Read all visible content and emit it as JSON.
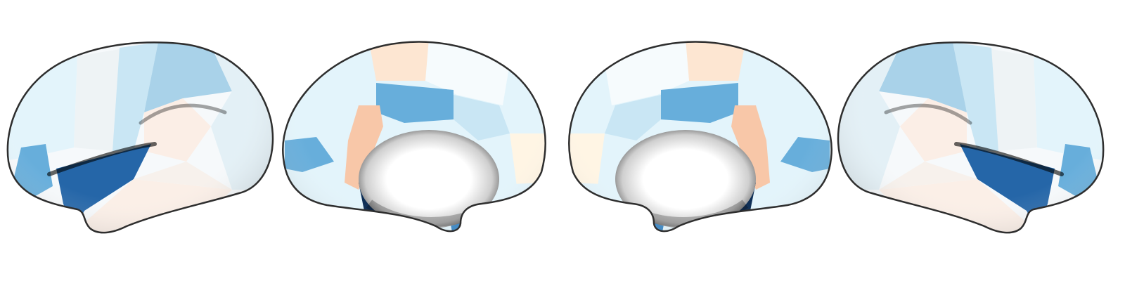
{
  "figure": {
    "views": [
      {
        "id": "left-lateral",
        "hemisphere": "left",
        "view": "lateral"
      },
      {
        "id": "left-medial",
        "hemisphere": "left",
        "view": "medial"
      },
      {
        "id": "right-medial",
        "hemisphere": "right",
        "view": "medial"
      },
      {
        "id": "right-lateral",
        "hemisphere": "right",
        "view": "lateral"
      }
    ],
    "colors": {
      "background": "#ffffff",
      "outline": "#2e2e2e",
      "near_zero": "#f6f9fb",
      "light_cyan": "#e3f4fb",
      "pale_blue": "#c9e6f4",
      "light_blue": "#a9d2e9",
      "mid_blue": "#67aedb",
      "blue": "#3a86c4",
      "strong_blue": "#2566a8",
      "dark_navy": "#0c2d55",
      "pale_peach": "#fde6d2",
      "peach": "#f8c7a8",
      "cream": "#fff5e4"
    }
  }
}
